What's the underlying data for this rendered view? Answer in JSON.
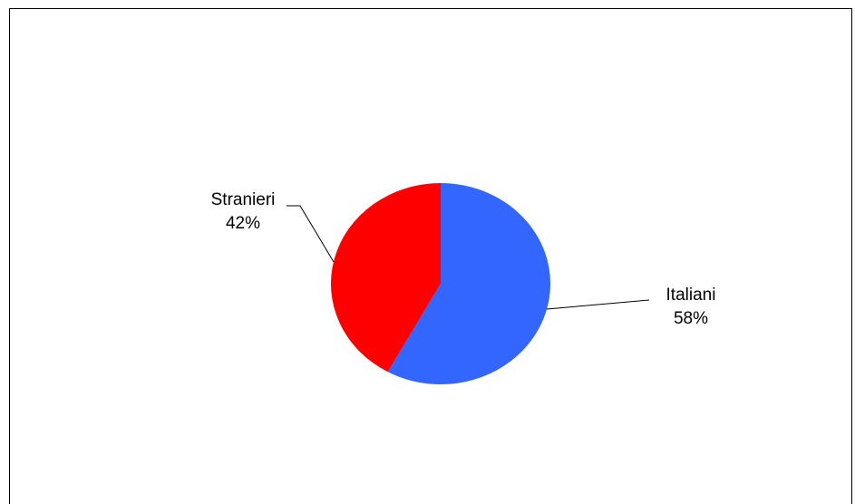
{
  "chart_data": {
    "type": "pie",
    "title": "",
    "start_angle_deg": 0,
    "direction": "clockwise",
    "legend": "none",
    "slices": [
      {
        "name": "Italiani",
        "value": 58,
        "percent_label": "58%",
        "color": "#3366ff"
      },
      {
        "name": "Stranieri",
        "value": 42,
        "percent_label": "42%",
        "color": "#ff0000"
      }
    ]
  }
}
